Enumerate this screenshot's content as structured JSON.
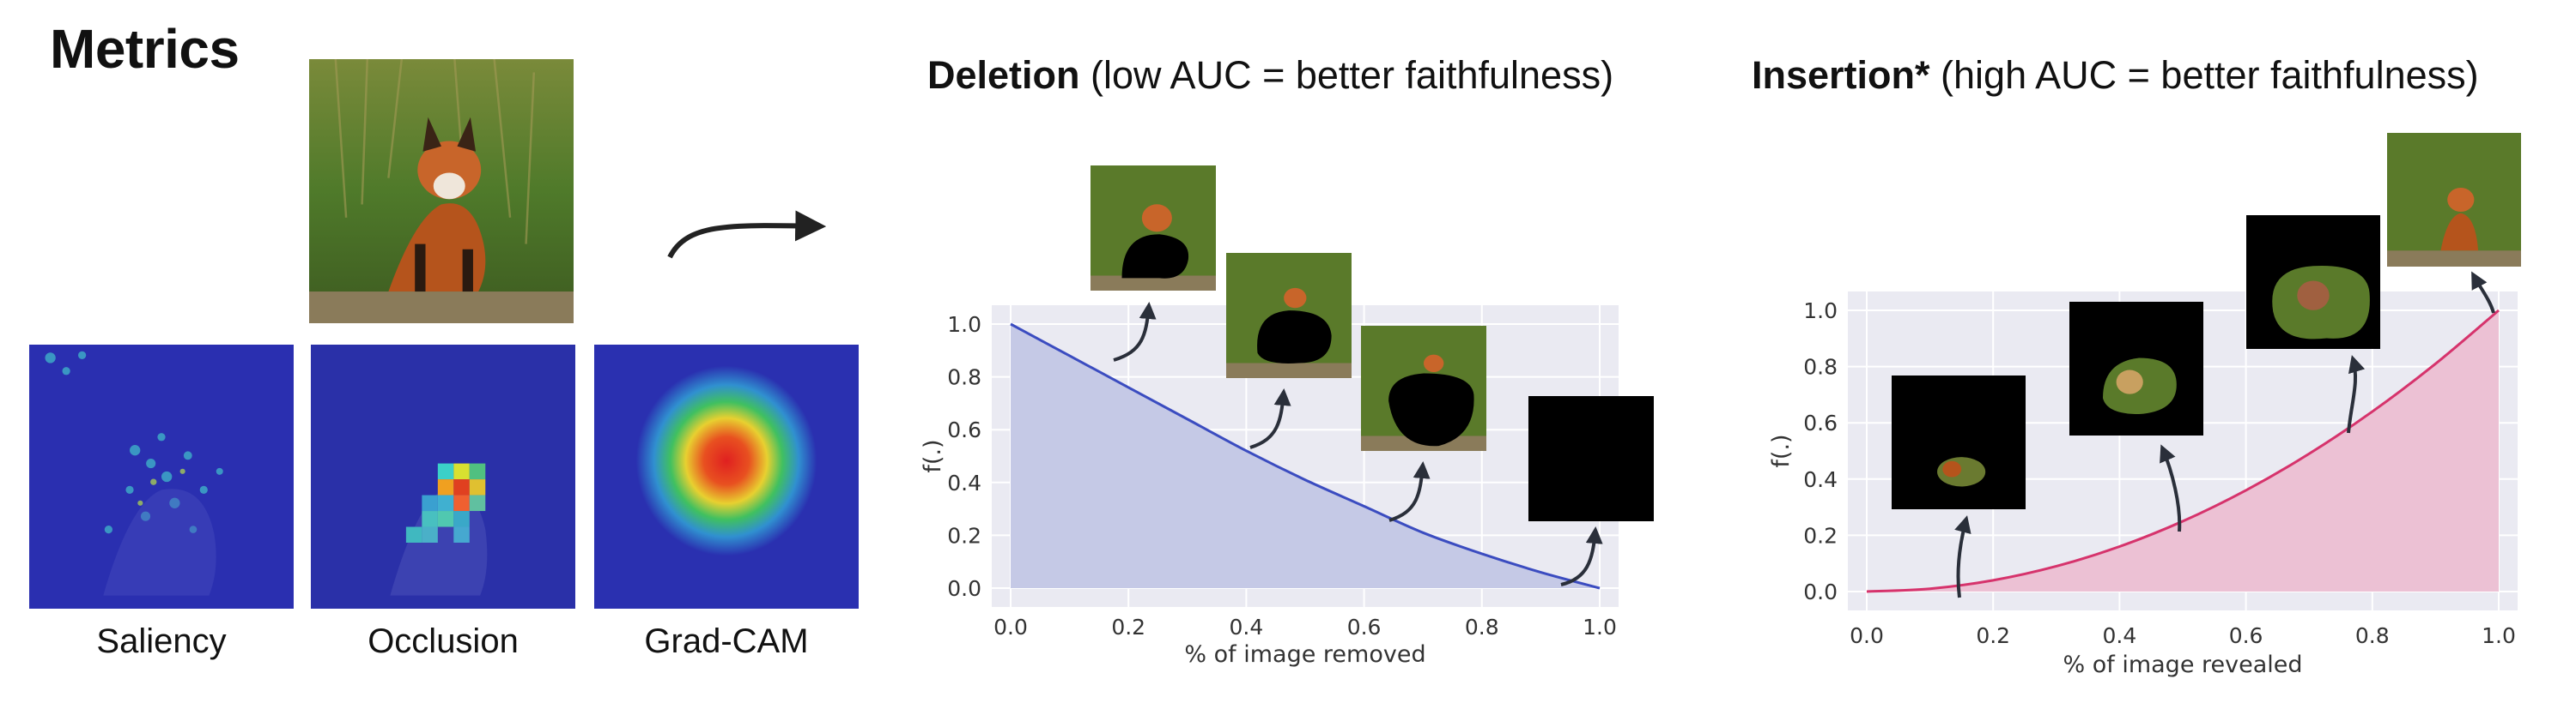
{
  "page": {
    "title": "Metrics"
  },
  "methods": [
    {
      "caption": "Saliency"
    },
    {
      "caption": "Occlusion"
    },
    {
      "caption": "Grad-CAM"
    }
  ],
  "deletion": {
    "title_bold": "Deletion",
    "title_rest": " (low AUC = better faithfulness)"
  },
  "insertion": {
    "title_bold": "Insertion*",
    "title_rest": " (high AUC = better faithfulness)"
  },
  "chart_data": [
    {
      "type": "area",
      "title": "Deletion",
      "xlabel": "% of image removed",
      "ylabel": "f(.)",
      "xlim": [
        0,
        1
      ],
      "ylim": [
        0,
        1
      ],
      "xticks": [
        "0.0",
        "0.2",
        "0.4",
        "0.6",
        "0.8",
        "1.0"
      ],
      "yticks": [
        "0.0",
        "0.2",
        "0.4",
        "0.6",
        "0.8",
        "1.0"
      ],
      "grid": true,
      "color": "#3b4cc0",
      "fill": "#c5c9e6",
      "x": [
        0.0,
        0.1,
        0.2,
        0.3,
        0.4,
        0.5,
        0.6,
        0.7,
        0.8,
        0.9,
        1.0
      ],
      "y": [
        1.0,
        0.88,
        0.76,
        0.64,
        0.52,
        0.41,
        0.31,
        0.21,
        0.13,
        0.06,
        0.0
      ]
    },
    {
      "type": "area",
      "title": "Insertion*",
      "xlabel": "% of image revealed",
      "ylabel": "f(.)",
      "xlim": [
        0,
        1
      ],
      "ylim": [
        0,
        1
      ],
      "xticks": [
        "0.0",
        "0.2",
        "0.4",
        "0.6",
        "0.8",
        "1.0"
      ],
      "yticks": [
        "0.0",
        "0.2",
        "0.4",
        "0.6",
        "0.8",
        "1.0"
      ],
      "grid": true,
      "color": "#d6336c",
      "fill": "#ecc1d4",
      "x": [
        0.0,
        0.1,
        0.2,
        0.3,
        0.4,
        0.5,
        0.6,
        0.7,
        0.8,
        0.9,
        1.0
      ],
      "y": [
        0.0,
        0.01,
        0.04,
        0.09,
        0.16,
        0.25,
        0.36,
        0.49,
        0.64,
        0.81,
        1.0
      ]
    }
  ]
}
